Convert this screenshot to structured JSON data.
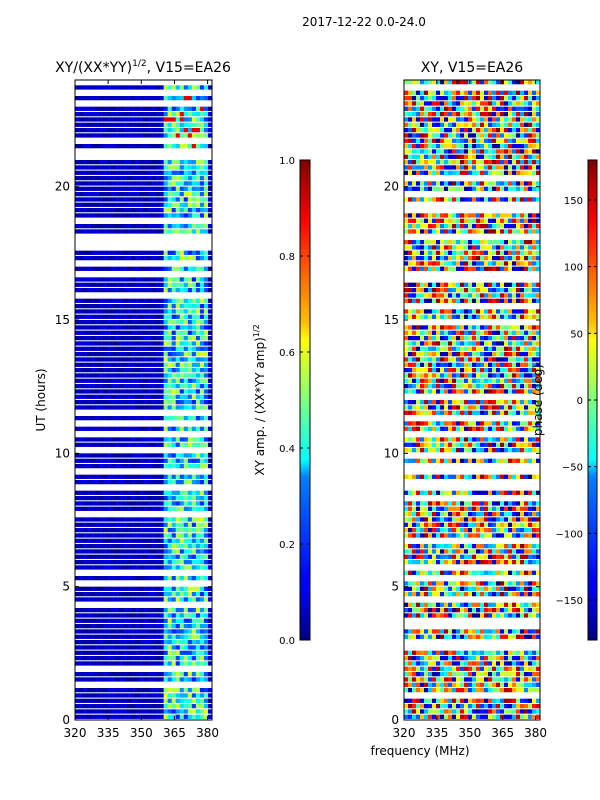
{
  "suptitle": "2017-12-22 0.0-24.0",
  "shared_xlabel": "frequency (MHz)",
  "colors": {
    "axis": "#000000",
    "background": "#ffffff"
  },
  "chart_data": [
    {
      "type": "heatmap",
      "title_main": "XY/(XX*YY)",
      "title_exp": "1/2",
      "title_tail": ", V15=EA26",
      "ylabel": "UT (hours)",
      "xlim": [
        320,
        382
      ],
      "ylim": [
        0,
        24
      ],
      "x_ticks": [
        320,
        335,
        350,
        365,
        380
      ],
      "y_ticks": [
        0,
        5,
        10,
        15,
        20
      ],
      "colorbar": {
        "label_main": "XY amp. / (XX*YY amp)",
        "label_exp": "1/2",
        "range": [
          0.0,
          1.0
        ],
        "ticks": [
          "0.0",
          "0.2",
          "0.4",
          "0.6",
          "0.8",
          "1.0"
        ],
        "tick_values": [
          0.0,
          0.2,
          0.4,
          0.6,
          0.8,
          1.0
        ],
        "colormap": "jet"
      }
    },
    {
      "type": "heatmap",
      "title_main": "XY, V15=EA26",
      "ylabel": "",
      "xlim": [
        320,
        382
      ],
      "ylim": [
        0,
        24
      ],
      "x_ticks": [
        320,
        335,
        350,
        365,
        380
      ],
      "y_ticks": [
        0,
        5,
        10,
        15,
        20
      ],
      "colorbar": {
        "label_main": "phase (deg)",
        "range": [
          -180,
          180
        ],
        "ticks": [
          "−150",
          "−100",
          "−50",
          "0",
          "50",
          "100",
          "150"
        ],
        "tick_values": [
          -150,
          -100,
          -50,
          0,
          50,
          100,
          150
        ],
        "colormap": "jet"
      }
    }
  ]
}
